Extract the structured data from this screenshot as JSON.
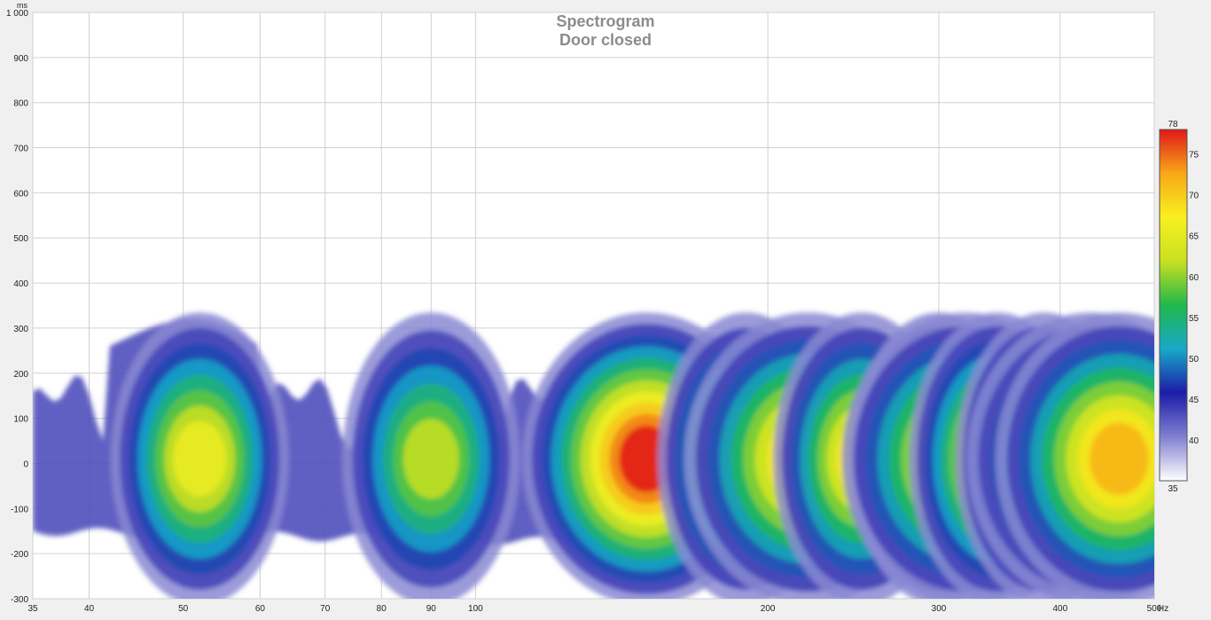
{
  "chart_data": {
    "type": "heatmap",
    "title": "Spectrogram",
    "subtitle": "Door closed",
    "x_unit": "Hz",
    "y_unit": "ms",
    "x_scale": "log",
    "xlim": [
      35,
      500
    ],
    "ylim": [
      -300,
      1000
    ],
    "x_ticks": [
      35,
      40,
      50,
      60,
      70,
      80,
      90,
      100,
      200,
      300,
      400,
      500
    ],
    "x_tick_labels": [
      "35",
      "40",
      "50",
      "60",
      "70",
      "80",
      "90",
      "100",
      "200",
      "300",
      "400",
      "500"
    ],
    "y_ticks": [
      -300,
      -200,
      -100,
      0,
      100,
      200,
      300,
      400,
      500,
      600,
      700,
      800,
      900,
      1000
    ],
    "y_tick_labels": [
      "-300",
      "-200",
      "-100",
      "0",
      "100",
      "200",
      "300",
      "400",
      "500",
      "600",
      "700",
      "800",
      "900",
      "1 000"
    ],
    "grid": true,
    "colorbar": {
      "min": 35,
      "max": 78,
      "ticks": [
        40,
        45,
        50,
        55,
        60,
        65,
        70,
        75
      ],
      "tick_labels": [
        "40",
        "45",
        "50",
        "55",
        "60",
        "65",
        "70",
        "75"
      ],
      "min_label": "35",
      "max_label": "78",
      "colors": [
        "#ffffff",
        "#8080d0",
        "#1c1ca8",
        "#18a8c8",
        "#20b84c",
        "#c8e020",
        "#f8f020",
        "#f8a818",
        "#e01818"
      ]
    },
    "peaks": [
      {
        "freq": 52,
        "level": 66
      },
      {
        "freq": 90,
        "level": 62
      },
      {
        "freq": 150,
        "level": 78
      },
      {
        "freq": 190,
        "level": 68
      },
      {
        "freq": 220,
        "level": 72
      },
      {
        "freq": 250,
        "level": 68
      },
      {
        "freq": 300,
        "level": 70
      },
      {
        "freq": 320,
        "level": 72
      },
      {
        "freq": 345,
        "level": 70
      },
      {
        "freq": 385,
        "level": 70
      },
      {
        "freq": 430,
        "level": 71
      },
      {
        "freq": 460,
        "level": 72
      }
    ]
  }
}
